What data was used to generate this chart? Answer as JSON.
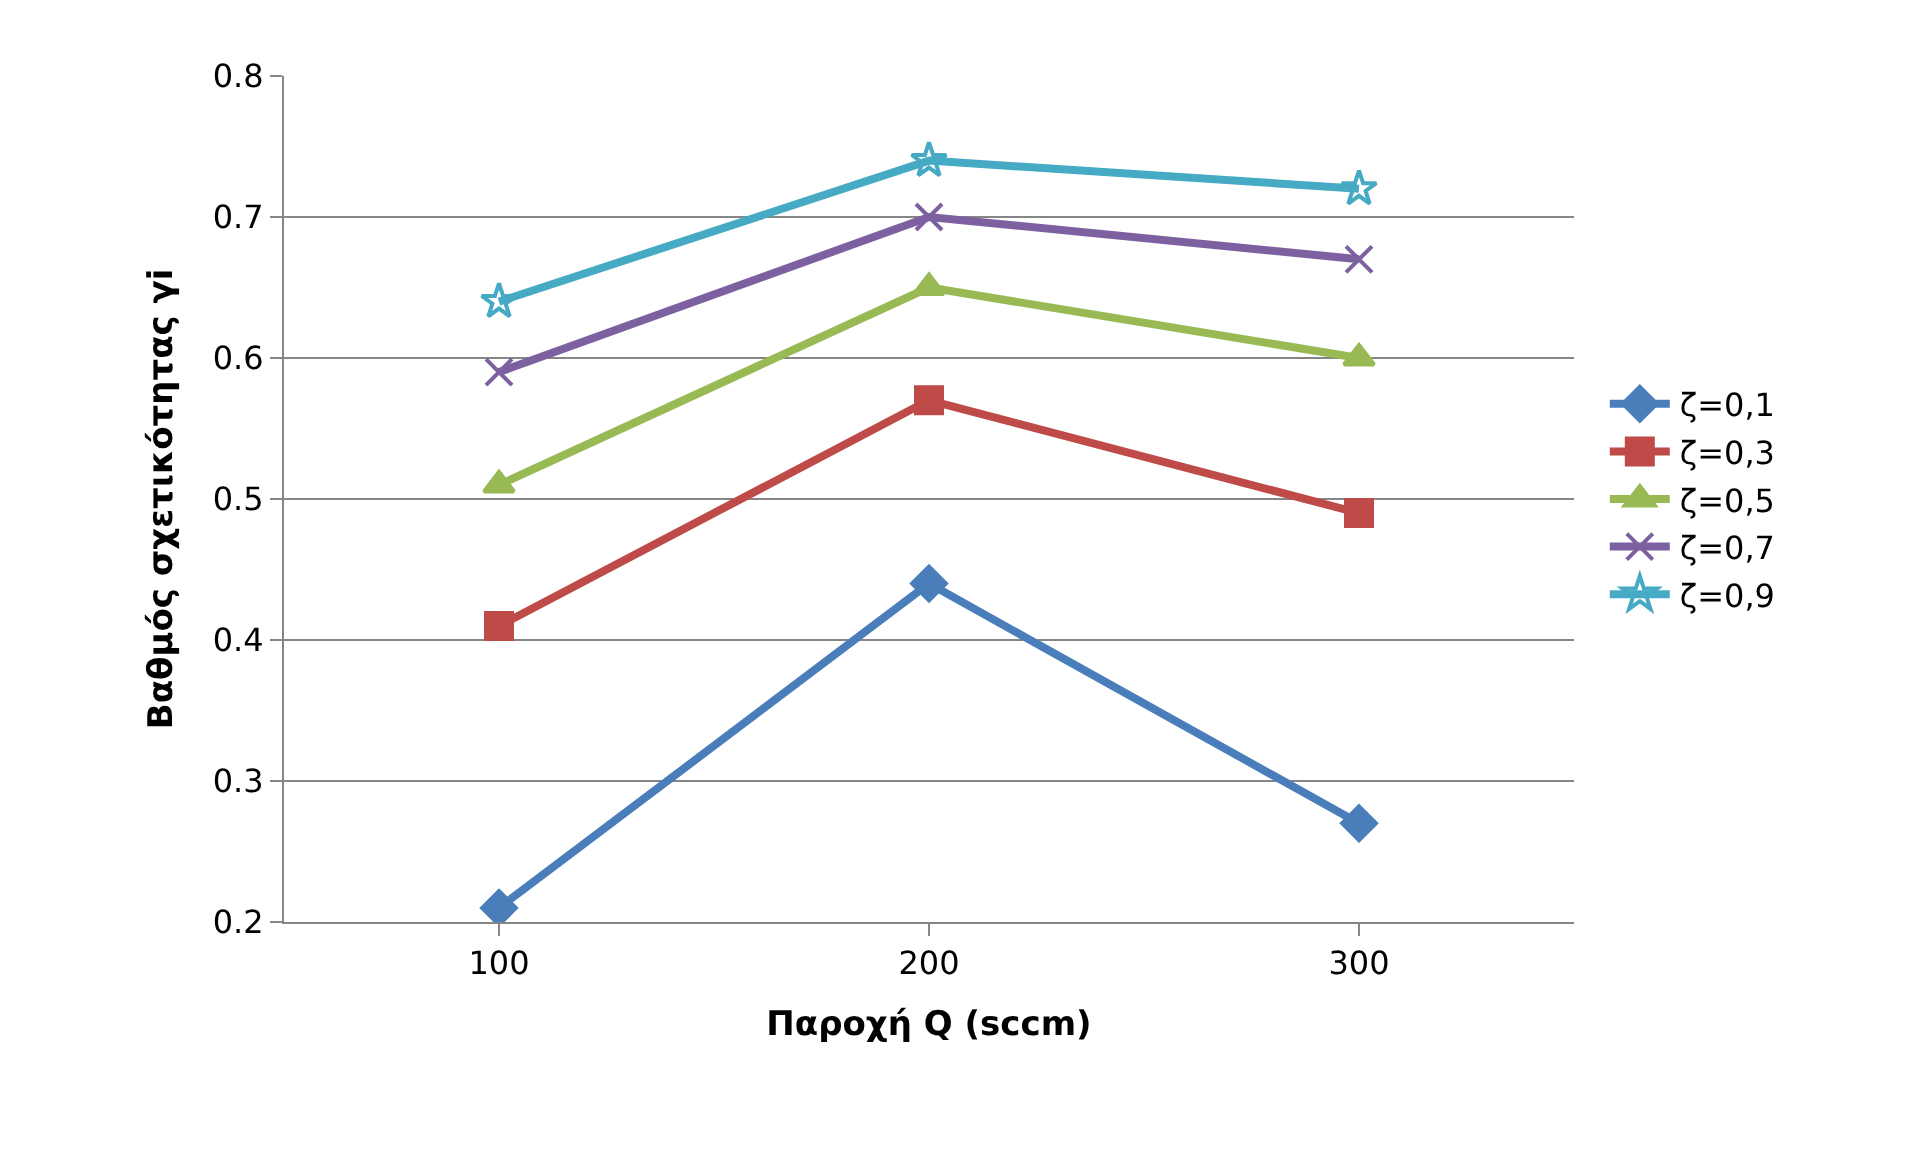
{
  "chart_data": {
    "type": "line",
    "xlabel": "Παροχή Q (sccm)",
    "ylabel": "Βαθμός σχετικότητας γi",
    "categories": [
      "100",
      "200",
      "300"
    ],
    "series": [
      {
        "name": "ζ=0,1",
        "color": "#4a7ebb",
        "marker": "diamond",
        "values": [
          0.21,
          0.44,
          0.27
        ]
      },
      {
        "name": "ζ=0,3",
        "color": "#be4b48",
        "marker": "square",
        "values": [
          0.41,
          0.57,
          0.49
        ]
      },
      {
        "name": "ζ=0,5",
        "color": "#98b954",
        "marker": "triangle",
        "values": [
          0.51,
          0.65,
          0.6
        ]
      },
      {
        "name": "ζ=0,7",
        "color": "#7d60a0",
        "marker": "cross",
        "values": [
          0.59,
          0.7,
          0.67
        ]
      },
      {
        "name": "ζ=0,9",
        "color": "#46aac5",
        "marker": "star",
        "values": [
          0.64,
          0.74,
          0.72
        ]
      }
    ],
    "ylim": [
      0.2,
      0.8
    ],
    "yticks": [
      0.2,
      0.3,
      0.4,
      0.5,
      0.6,
      0.7,
      0.8
    ],
    "grid": "y",
    "legend": "right",
    "line_style": "solid"
  }
}
